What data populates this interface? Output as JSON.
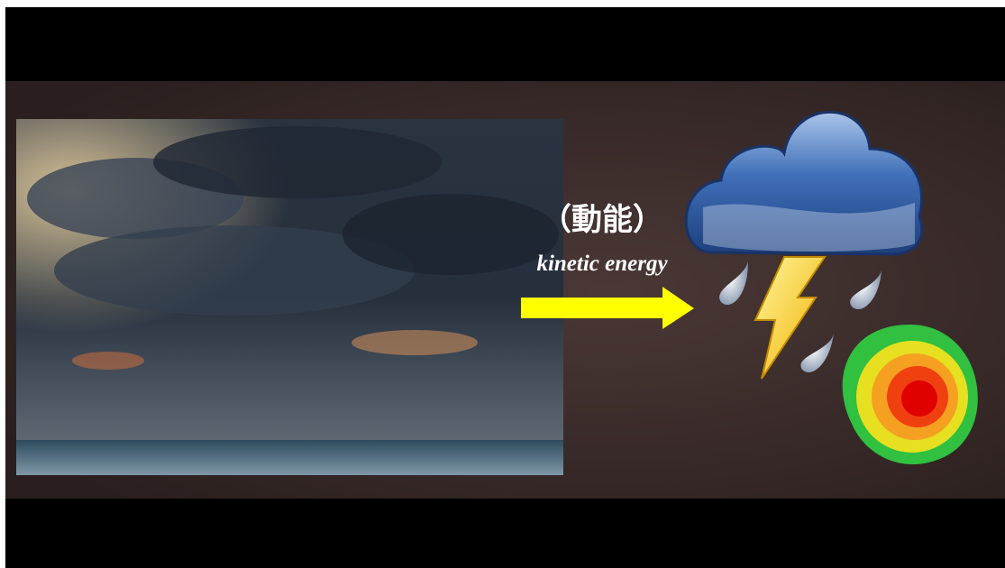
{
  "slide": {
    "label_zh": "（動能）",
    "label_en": "kinetic energy"
  }
}
